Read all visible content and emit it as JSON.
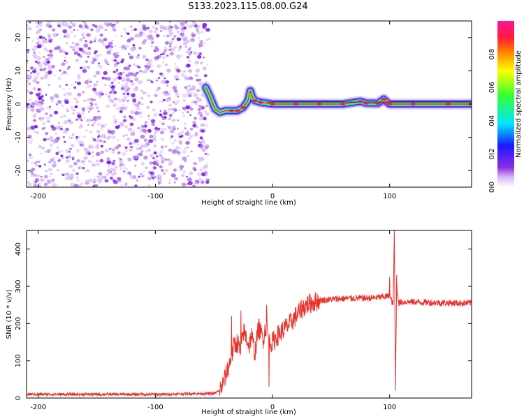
{
  "title": "S133.2023.115.08.00.G24",
  "colors": {
    "snr_line": "#e8322d",
    "specgram_noise": "#8a2be2",
    "specgram_peak": "#ff1a3c",
    "axes": "#000000",
    "background": "#ffffff"
  },
  "chart_data": [
    {
      "type": "heatmap",
      "name": "spectrogram",
      "xlabel": "Height of straight line (km)",
      "ylabel": "Frequency (Hz)",
      "xlim": [
        -210,
        170
      ],
      "ylim": [
        -25,
        25
      ],
      "xticks": [
        -200,
        -100,
        0,
        100
      ],
      "yticks": [
        -20,
        -10,
        0,
        10,
        20
      ],
      "grid": false,
      "noise_region": {
        "x_from": -210,
        "x_to": -55,
        "description_level": "low amplitude scattered noise"
      },
      "signal_track": {
        "x": [
          -57,
          -53,
          -49,
          -45,
          -40,
          -35,
          -30,
          -25,
          -21,
          -19,
          -17,
          -15,
          -10,
          0,
          20,
          40,
          60,
          75,
          80,
          90,
          95,
          98,
          100,
          120,
          150,
          170
        ],
        "frequency": [
          5,
          2,
          -1.5,
          -2.5,
          -2,
          -2,
          -2,
          -1,
          1,
          4,
          2,
          1,
          0.5,
          0,
          0,
          0,
          0,
          0.8,
          0.3,
          0.2,
          1.5,
          0.5,
          0,
          0,
          0,
          0
        ],
        "amplitude": [
          0.3,
          0.25,
          0.5,
          0.6,
          0.6,
          0.7,
          0.8,
          0.7,
          0.6,
          0.4,
          0.5,
          0.7,
          0.75,
          0.85,
          0.9,
          0.9,
          0.9,
          0.8,
          0.85,
          0.8,
          0.7,
          0.75,
          0.95,
          0.95,
          0.9,
          0.85
        ]
      },
      "colorbar": {
        "label": "Normalized spectral amplitude",
        "range": [
          0,
          1
        ],
        "ticks": [
          0.0,
          0.2,
          0.4,
          0.6,
          0.8
        ],
        "tick_labels": [
          "0.0",
          "0.2",
          "0.4",
          "0.6",
          "0.8"
        ],
        "colormap": "rainbow (white→violet→blue→cyan→green→yellow→red→magenta)"
      }
    },
    {
      "type": "line",
      "name": "snr",
      "xlabel": "Height of straight line (km)",
      "ylabel": "SNR (10 * v/v)",
      "xlim": [
        -210,
        170
      ],
      "ylim": [
        0,
        450
      ],
      "xticks": [
        -200,
        -100,
        0,
        100
      ],
      "yticks": [
        0,
        100,
        200,
        300,
        400
      ],
      "grid": false,
      "series": [
        {
          "x": [
            -210,
            -180,
            -150,
            -120,
            -90,
            -70,
            -50,
            -45,
            -42,
            -38,
            -35,
            -33,
            -30,
            -27,
            -25,
            -22,
            -20,
            -18,
            -15,
            -12,
            -8,
            -5,
            -3,
            0,
            5,
            10,
            15,
            20,
            25,
            30,
            40,
            50,
            60,
            70,
            80,
            90,
            95,
            100,
            103,
            104,
            105,
            106,
            108,
            110,
            120,
            140,
            160,
            170
          ],
          "y": [
            10,
            10,
            10,
            10,
            10,
            12,
            12,
            20,
            40,
            80,
            110,
            140,
            150,
            120,
            180,
            160,
            140,
            170,
            120,
            190,
            160,
            200,
            150,
            150,
            170,
            185,
            200,
            220,
            240,
            252,
            262,
            265,
            267,
            268,
            268,
            270,
            272,
            274,
            250,
            430,
            40,
            300,
            255,
            258,
            258,
            256,
            255,
            255
          ]
        }
      ],
      "spikes": [
        {
          "x": -35,
          "y": 220
        },
        {
          "x": -27,
          "y": 235
        },
        {
          "x": -5,
          "y": 250
        },
        {
          "x": -3,
          "y": 30
        },
        {
          "x": 100,
          "y": 325
        },
        {
          "x": 104,
          "y": 450
        },
        {
          "x": 105,
          "y": 20
        },
        {
          "x": 106,
          "y": 330
        }
      ]
    }
  ]
}
